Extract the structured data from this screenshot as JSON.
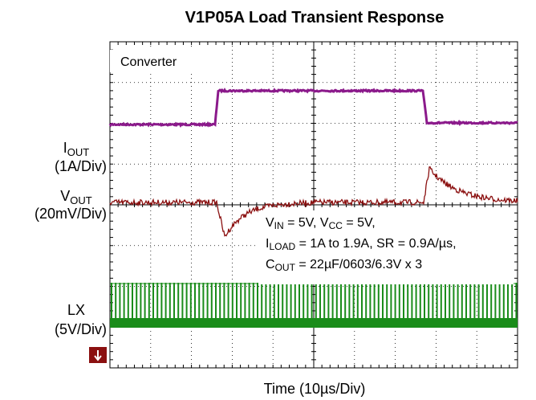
{
  "chart_data": {
    "type": "scope",
    "title": "V1P05A Load Transient Response",
    "xlabel": "Time (10µs/Div)",
    "inset_label": "Converter",
    "channels": [
      {
        "name": [
          "I",
          "OUT"
        ],
        "scale": "(1A/Div)",
        "color": "#8b1a8b"
      },
      {
        "name": [
          "V",
          "OUT"
        ],
        "scale": "(20mV/Div)",
        "color": "#8b1010"
      },
      {
        "name": [
          "LX"
        ],
        "scale": "(5V/Div)",
        "color": "#1a8c1a"
      }
    ],
    "annotations": [
      [
        "V",
        "IN",
        " = 5V, V",
        "CC",
        " = 5V,"
      ],
      [
        "I",
        "LOAD",
        " = 1A to 1.9A, SR = 0.9A/µs,"
      ],
      [
        "C",
        "OUT",
        " = 22µF/0603/6.3V x 3"
      ]
    ]
  }
}
